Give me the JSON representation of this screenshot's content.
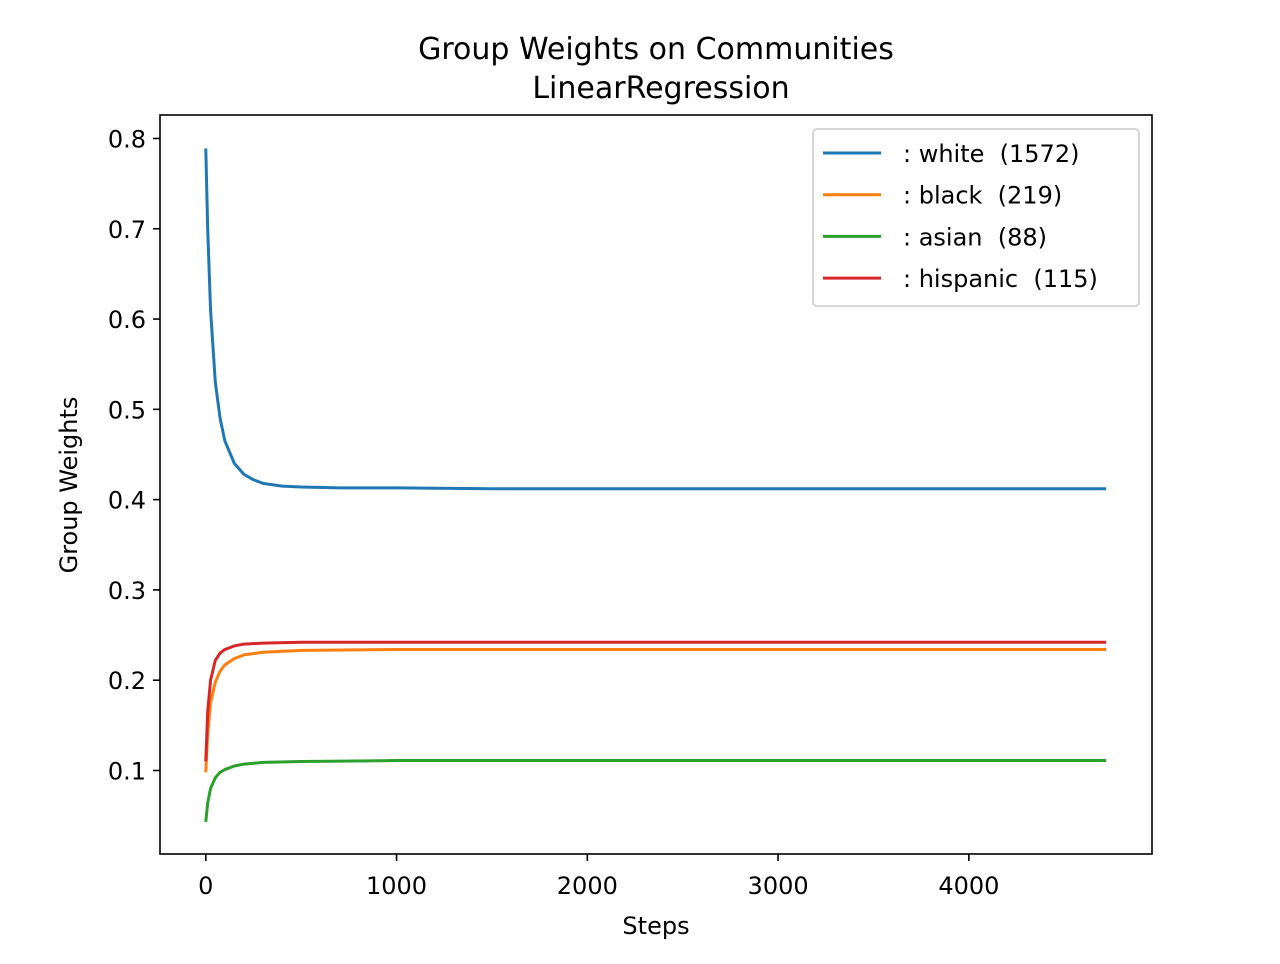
{
  "chart_data": {
    "type": "line",
    "title": "Group Weights on Communities",
    "subtitle": "LinearRegression",
    "xlabel": "Steps",
    "ylabel": "Group Weights",
    "xlim": [
      -240,
      4960
    ],
    "ylim": [
      0.0075,
      0.826
    ],
    "xticks": [
      0,
      1000,
      2000,
      3000,
      4000
    ],
    "yticks": [
      0.1,
      0.2,
      0.3,
      0.4,
      0.5,
      0.6,
      0.7,
      0.8
    ],
    "xtick_labels": [
      "0",
      "1000",
      "2000",
      "3000",
      "4000"
    ],
    "ytick_labels": [
      "0.1",
      "0.2",
      "0.3",
      "0.4",
      "0.5",
      "0.6",
      "0.7",
      "0.8"
    ],
    "grid": false,
    "legend_position": "top-right",
    "series": [
      {
        "name": ": white  (1572)",
        "color": "#1f77b4",
        "x": [
          0,
          10,
          25,
          50,
          75,
          100,
          150,
          200,
          250,
          300,
          400,
          500,
          700,
          1000,
          1500,
          2000,
          3000,
          4000,
          4720
        ],
        "y": [
          0.789,
          0.7,
          0.61,
          0.53,
          0.49,
          0.465,
          0.44,
          0.428,
          0.422,
          0.418,
          0.415,
          0.414,
          0.413,
          0.413,
          0.412,
          0.412,
          0.412,
          0.412,
          0.412
        ]
      },
      {
        "name": ": black  (219)",
        "color": "#ff7f0e",
        "x": [
          0,
          10,
          25,
          50,
          75,
          100,
          150,
          200,
          300,
          500,
          1000,
          2000,
          3000,
          4000,
          4720
        ],
        "y": [
          0.098,
          0.14,
          0.175,
          0.198,
          0.21,
          0.217,
          0.224,
          0.228,
          0.231,
          0.233,
          0.234,
          0.234,
          0.234,
          0.234,
          0.234
        ]
      },
      {
        "name": ": asian  (88)",
        "color": "#2ca02c",
        "x": [
          0,
          10,
          25,
          50,
          75,
          100,
          150,
          200,
          300,
          500,
          1000,
          2000,
          3000,
          4000,
          4720
        ],
        "y": [
          0.043,
          0.064,
          0.08,
          0.092,
          0.098,
          0.101,
          0.105,
          0.107,
          0.109,
          0.11,
          0.111,
          0.111,
          0.111,
          0.111,
          0.111
        ]
      },
      {
        "name": ": hispanic  (115)",
        "color": "#d62728",
        "x": [
          0,
          10,
          25,
          50,
          75,
          100,
          150,
          200,
          300,
          500,
          1000,
          2000,
          3000,
          4000,
          4720
        ],
        "y": [
          0.11,
          0.165,
          0.2,
          0.222,
          0.23,
          0.234,
          0.238,
          0.24,
          0.241,
          0.242,
          0.242,
          0.242,
          0.242,
          0.242,
          0.242
        ]
      }
    ]
  }
}
